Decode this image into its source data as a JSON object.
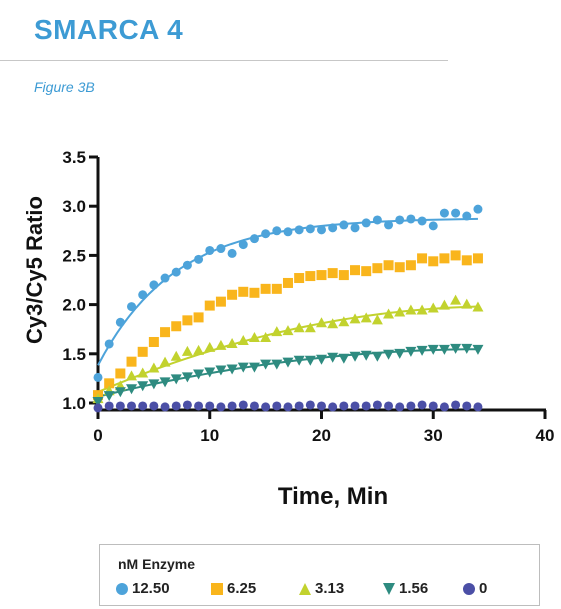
{
  "header": {
    "title": "SMARCA 4",
    "figure_label": "Figure 3B"
  },
  "colors": {
    "title": "#3d9bd4",
    "s12_50": "#4da3da",
    "s6_25": "#f9b51c",
    "s3_13": "#c2d22e",
    "s1_56": "#2e8b80",
    "s0": "#4b4fa6"
  },
  "chart_data": {
    "type": "scatter",
    "xlabel": "Time, Min",
    "ylabel": "Cy3/Cy5 Ratio",
    "xlim": [
      0,
      40
    ],
    "ylim": [
      0.9,
      3.5
    ],
    "xticks": [
      "0",
      "10",
      "20",
      "30",
      "40"
    ],
    "yticks": [
      "1.0",
      "1.5",
      "2.0",
      "2.5",
      "3.0",
      "3.5"
    ],
    "grid": false,
    "legend": {
      "title": "nM Enzyme",
      "placement": "bottom",
      "entries": [
        "12.50",
        "6.25",
        "3.13",
        "1.56",
        "0"
      ]
    },
    "series": [
      {
        "name": "12.50",
        "marker": "circle",
        "fit_curve": true,
        "x": [
          0,
          1,
          2,
          3,
          4,
          5,
          6,
          7,
          8,
          9,
          10,
          11,
          12,
          13,
          14,
          15,
          16,
          17,
          18,
          19,
          20,
          21,
          22,
          23,
          24,
          25,
          26,
          27,
          28,
          29,
          30,
          31,
          32,
          33,
          34
        ],
        "y": [
          1.26,
          1.6,
          1.82,
          1.98,
          2.1,
          2.2,
          2.27,
          2.33,
          2.4,
          2.46,
          2.55,
          2.57,
          2.52,
          2.61,
          2.67,
          2.72,
          2.75,
          2.74,
          2.76,
          2.77,
          2.76,
          2.78,
          2.81,
          2.78,
          2.83,
          2.86,
          2.81,
          2.86,
          2.87,
          2.85,
          2.8,
          2.93,
          2.93,
          2.9,
          2.97
        ]
      },
      {
        "name": "6.25",
        "marker": "square",
        "fit_curve": false,
        "x": [
          0,
          1,
          2,
          3,
          4,
          5,
          6,
          7,
          8,
          9,
          10,
          11,
          12,
          13,
          14,
          15,
          16,
          17,
          18,
          19,
          20,
          21,
          22,
          23,
          24,
          25,
          26,
          27,
          28,
          29,
          30,
          31,
          32,
          33,
          34
        ],
        "y": [
          1.08,
          1.2,
          1.3,
          1.42,
          1.52,
          1.62,
          1.72,
          1.78,
          1.84,
          1.87,
          1.99,
          2.03,
          2.1,
          2.13,
          2.12,
          2.16,
          2.16,
          2.22,
          2.27,
          2.29,
          2.3,
          2.32,
          2.3,
          2.35,
          2.34,
          2.37,
          2.4,
          2.38,
          2.4,
          2.47,
          2.44,
          2.47,
          2.5,
          2.45,
          2.47
        ]
      },
      {
        "name": "3.13",
        "marker": "triangle-up",
        "fit_curve": true,
        "x": [
          0,
          1,
          2,
          3,
          4,
          5,
          6,
          7,
          8,
          9,
          10,
          11,
          12,
          13,
          14,
          15,
          16,
          17,
          18,
          19,
          20,
          21,
          22,
          23,
          24,
          25,
          26,
          27,
          28,
          29,
          30,
          31,
          32,
          33,
          34
        ],
        "y": [
          1.04,
          1.12,
          1.17,
          1.27,
          1.3,
          1.35,
          1.41,
          1.47,
          1.52,
          1.53,
          1.56,
          1.58,
          1.6,
          1.63,
          1.66,
          1.66,
          1.72,
          1.73,
          1.76,
          1.76,
          1.81,
          1.8,
          1.82,
          1.85,
          1.86,
          1.84,
          1.9,
          1.92,
          1.94,
          1.94,
          1.96,
          1.99,
          2.04,
          2.0,
          1.97
        ]
      },
      {
        "name": "1.56",
        "marker": "triangle-down",
        "fit_curve": true,
        "x": [
          0,
          1,
          2,
          3,
          4,
          5,
          6,
          7,
          8,
          9,
          10,
          11,
          12,
          13,
          14,
          15,
          16,
          17,
          18,
          19,
          20,
          21,
          22,
          23,
          24,
          25,
          26,
          27,
          28,
          29,
          30,
          31,
          32,
          33,
          34
        ],
        "y": [
          1.02,
          1.08,
          1.12,
          1.15,
          1.18,
          1.2,
          1.22,
          1.25,
          1.27,
          1.3,
          1.32,
          1.34,
          1.35,
          1.37,
          1.37,
          1.4,
          1.4,
          1.42,
          1.44,
          1.44,
          1.45,
          1.47,
          1.46,
          1.48,
          1.49,
          1.48,
          1.5,
          1.51,
          1.53,
          1.54,
          1.55,
          1.55,
          1.56,
          1.56,
          1.55
        ]
      },
      {
        "name": "0",
        "marker": "circle",
        "fit_curve": false,
        "x": [
          0,
          1,
          2,
          3,
          4,
          5,
          6,
          7,
          8,
          9,
          10,
          11,
          12,
          13,
          14,
          15,
          16,
          17,
          18,
          19,
          20,
          21,
          22,
          23,
          24,
          25,
          26,
          27,
          28,
          29,
          30,
          31,
          32,
          33,
          34
        ],
        "y": [
          0.95,
          0.97,
          0.97,
          0.97,
          0.97,
          0.97,
          0.96,
          0.97,
          0.98,
          0.97,
          0.97,
          0.96,
          0.97,
          0.98,
          0.97,
          0.96,
          0.97,
          0.96,
          0.97,
          0.98,
          0.97,
          0.96,
          0.97,
          0.97,
          0.97,
          0.98,
          0.97,
          0.96,
          0.97,
          0.98,
          0.97,
          0.96,
          0.98,
          0.97,
          0.96
        ]
      }
    ]
  }
}
